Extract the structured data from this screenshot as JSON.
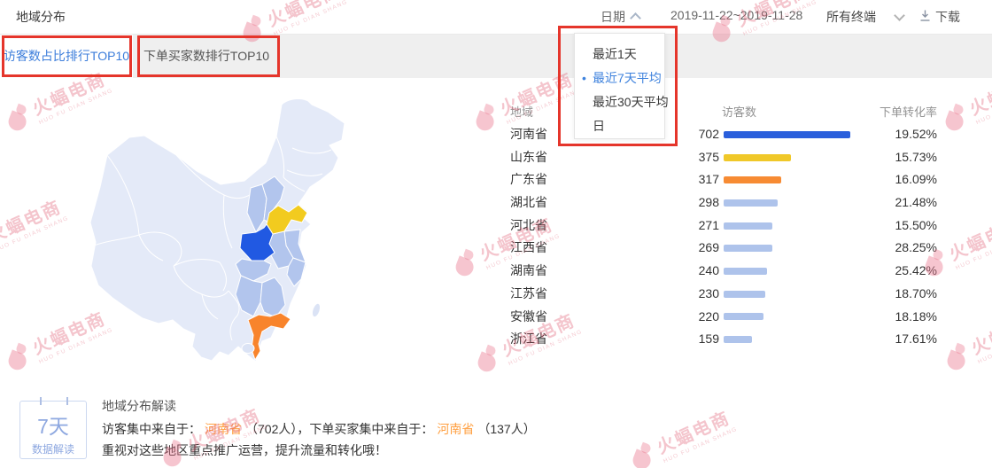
{
  "header": {
    "title": "地域分布"
  },
  "toolbar": {
    "date_label": "日期",
    "date_range": "2019-11-22~2019-11-28",
    "terminal_label": "所有终端",
    "download_label": "下载"
  },
  "tabs": [
    {
      "label": "访客数占比排行TOP10",
      "active": true
    },
    {
      "label": "下单买家数排行TOP10",
      "active": false
    }
  ],
  "date_dropdown": {
    "items": [
      {
        "label": "最近1天",
        "selected": false
      },
      {
        "label": "最近7天平均",
        "selected": true
      },
      {
        "label": "最近30天平均",
        "selected": false
      },
      {
        "label": "日",
        "selected": false
      }
    ]
  },
  "chart_data": {
    "type": "bar",
    "title": "访客数占比排行TOP10",
    "columns": [
      "地域",
      "访客数",
      "下单转化率"
    ],
    "categories": [
      "河南省",
      "山东省",
      "广东省",
      "湖北省",
      "河北省",
      "江西省",
      "湖南省",
      "江苏省",
      "安徽省",
      "浙江省"
    ],
    "visitors": [
      702,
      375,
      317,
      298,
      271,
      269,
      240,
      230,
      220,
      159
    ],
    "conversion": [
      "19.52%",
      "15.73%",
      "16.09%",
      "21.48%",
      "15.50%",
      "28.25%",
      "25.42%",
      "18.70%",
      "18.18%",
      "17.61%"
    ],
    "bar_colors": [
      "#2A5FDC",
      "#F0C829",
      "#F78B33",
      "#AEC3EB",
      "#AEC3EB",
      "#AEC3EB",
      "#AEC3EB",
      "#AEC3EB",
      "#AEC3EB",
      "#AEC3EB"
    ],
    "max": 702,
    "legend_position": "none",
    "grid": false
  },
  "insight": {
    "badge": {
      "line1": "7天",
      "line2": "数据解读"
    },
    "title": "地域分布解读",
    "line1": [
      {
        "text": "访客集中来自于：",
        "highlight": false
      },
      {
        "text": "河南省",
        "highlight": true
      },
      {
        "text": "（702人），下单买家集中来自于：",
        "highlight": false
      },
      {
        "text": "河南省",
        "highlight": true
      },
      {
        "text": "（137人）",
        "highlight": false
      }
    ],
    "line2": "重视对这些地区重点推广运营，提升流量和转化哦！"
  },
  "watermark": {
    "text": "火蝠电商",
    "subtext": "HUO FU DIAN SHANG"
  },
  "colors": {
    "accent_blue": "#3D7EDB",
    "annotation_red": "#E5352B",
    "highlight_orange": "#FFA042",
    "badge_blue": "#8EA8E0",
    "map_base": "#E4EAF8",
    "map_medium": "#B2C5ED",
    "map_henan": "#2159E2",
    "map_shandong": "#F2CB1F",
    "map_guangdong": "#F8842C",
    "map_island": "#DBE3F5",
    "watermark_pink": "#DF5066"
  }
}
